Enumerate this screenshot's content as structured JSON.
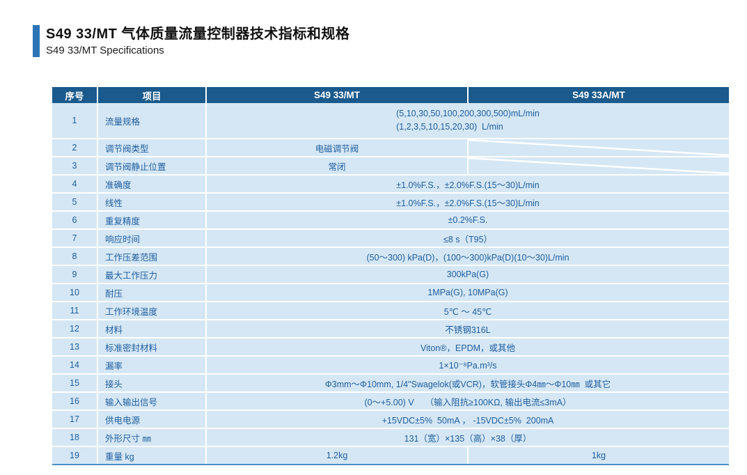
{
  "page": {
    "title": "S49 33/MT 气体质量流量控制器技术指标和规格",
    "subtitle": "S49 33/MT  Specifications"
  },
  "colors": {
    "accent_bar": "#2e74b5",
    "header_bg": "#1a5a8c",
    "row_bg": "#d5e7f4",
    "table_text": "#1d5d9f",
    "na_slash": "#ffffff"
  },
  "table": {
    "headers": [
      "序号",
      "项目",
      "S49 33/MT",
      "S49 33A/MT"
    ],
    "rows": [
      {
        "no": "1",
        "item": "流量规格",
        "layout": "full2line",
        "lines": [
          "(5,10,30,50,100,200,300,500)mL/min",
          "(1,2,3,5,10,15,20,30)  L/min"
        ]
      },
      {
        "no": "2",
        "item": "调节阀类型",
        "layout": "left_na",
        "value": "电磁调节阀"
      },
      {
        "no": "3",
        "item": "调节阀静止位置",
        "layout": "left_na",
        "value": "常闭"
      },
      {
        "no": "4",
        "item": "准确度",
        "layout": "full",
        "value": "±1.0%F.S.，±2.0%F.S.(15～30)L/min"
      },
      {
        "no": "5",
        "item": "线性",
        "layout": "full",
        "value": "±1.0%F.S.，±2.0%F.S.(15～30)L/min"
      },
      {
        "no": "6",
        "item": "重复精度",
        "layout": "full",
        "value": "±0.2%F.S."
      },
      {
        "no": "7",
        "item": "响应时间",
        "layout": "full",
        "value": "≤8 s（T95）"
      },
      {
        "no": "8",
        "item": "工作压差范围",
        "layout": "full",
        "value": "(50～300) kPa(D)，(100～300)kPa(D)(10～30)L/min"
      },
      {
        "no": "9",
        "item": "最大工作压力",
        "layout": "full",
        "value": "300kPa(G)"
      },
      {
        "no": "10",
        "item": "耐压",
        "layout": "full",
        "value": "1MPa(G), 10MPa(G)"
      },
      {
        "no": "11",
        "item": "工作环境温度",
        "layout": "full",
        "value": "5℃ ～ 45℃"
      },
      {
        "no": "12",
        "item": "材料",
        "layout": "full",
        "value": "不锈钢316L"
      },
      {
        "no": "13",
        "item": "标准密封材料",
        "layout": "full",
        "value": "Viton®，EPDM，或其他"
      },
      {
        "no": "14",
        "item": "漏率",
        "layout": "full",
        "value": "1×10⁻⁸Pa.m³/s"
      },
      {
        "no": "15",
        "item": "接头",
        "layout": "full",
        "value": "Φ3mm～Φ10mm, 1/4\"Swagelok(或VCR)，软管接头Φ4㎜～Φ10㎜  或其它"
      },
      {
        "no": "16",
        "item": "输入输出信号",
        "layout": "full",
        "value": "(0～+5.00) V　 （输入阻抗≥100KΩ, 输出电流≤3mA）"
      },
      {
        "no": "17",
        "item": "供电电源",
        "layout": "full",
        "value": "+15VDC±5%  50mA ， -15VDC±5%  200mA"
      },
      {
        "no": "18",
        "item": "外形尺寸 ㎜",
        "layout": "full",
        "value": "131（宽）×135（高）×38（厚）"
      },
      {
        "no": "19",
        "item": "重量 kg",
        "layout": "split",
        "value": "1.2kg",
        "value2": "1kg"
      }
    ]
  }
}
